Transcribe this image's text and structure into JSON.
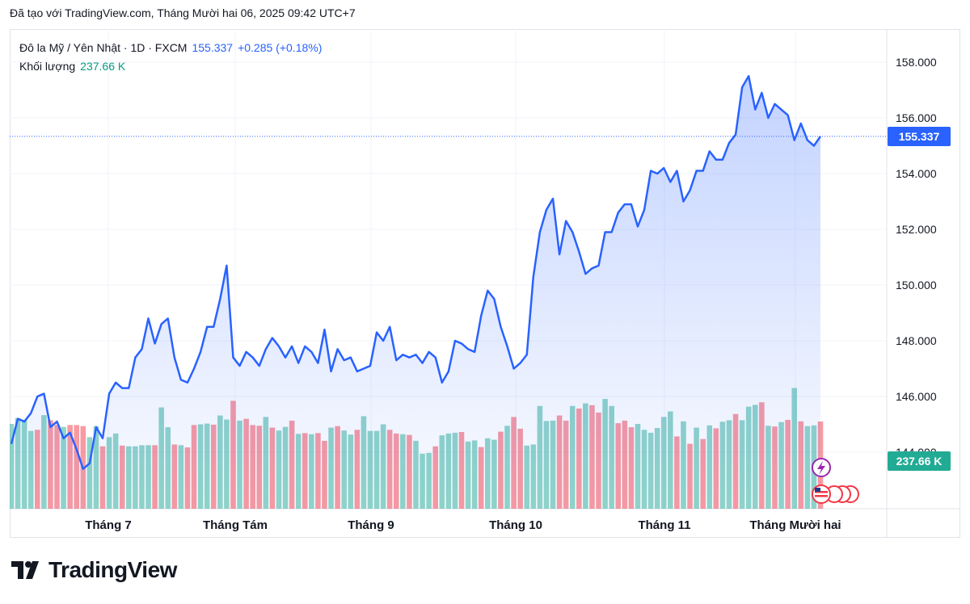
{
  "header": {
    "created_text": "Đã tạo với TradingView.com, Tháng Mười hai 06, 2025 09:42 UTC+7"
  },
  "legend": {
    "symbol": "Đô la Mỹ / Yên Nhật · 1D · FXCM",
    "price": "155.337",
    "change": "+0.285 (+0.18%)",
    "volume_label": "Khối lượng",
    "volume_value": "237.66 K"
  },
  "tags": {
    "price_tag": "155.337",
    "volume_tag": "237.66 K"
  },
  "footer": {
    "brand": "TradingView"
  },
  "colors": {
    "line": "#2962ff",
    "vol_up": "#22ab94",
    "vol_down": "#f23645"
  },
  "icons": [
    "flash-event-icon",
    "us-flag-event-icon"
  ],
  "chart_data": {
    "type": "area",
    "title": "Đô la Mỹ / Yên Nhật · 1D · FXCM",
    "x_tick_labels": [
      "Tháng 7",
      "Tháng Tám",
      "Tháng 9",
      "Tháng 10",
      "Tháng 11",
      "Tháng Mười hai"
    ],
    "y_tick_labels": [
      "158.000",
      "156.000",
      "154.000",
      "152.000",
      "150.000",
      "148.000",
      "146.000",
      "144.000"
    ],
    "ylim": [
      143.0,
      159.0
    ],
    "last_price": 155.337,
    "grid": true,
    "series": [
      {
        "values": [
          144.3,
          145.2,
          145.1,
          145.4,
          146.0,
          146.1,
          144.9,
          145.1,
          144.5,
          144.7,
          144.1,
          143.4,
          143.6,
          144.9,
          144.5,
          146.1,
          146.5,
          146.3,
          146.3,
          147.4,
          147.7,
          148.8,
          147.9,
          148.6,
          148.8,
          147.4,
          146.6,
          146.5,
          147.0,
          147.6,
          148.5,
          148.5,
          149.5,
          150.7,
          147.4,
          147.1,
          147.6,
          147.4,
          147.1,
          147.7,
          148.1,
          147.8,
          147.4,
          147.8,
          147.2,
          147.8,
          147.6,
          147.2,
          148.4,
          146.9,
          147.7,
          147.3,
          147.4,
          146.9,
          147.0,
          147.1,
          148.3,
          148.0,
          148.5,
          147.3,
          147.5,
          147.4,
          147.5,
          147.2,
          147.6,
          147.4,
          146.5,
          146.9,
          148.0,
          147.9,
          147.7,
          147.6,
          148.9,
          149.8,
          149.5,
          148.5,
          147.8,
          147.0,
          147.2,
          147.5,
          150.3,
          151.9,
          152.7,
          153.1,
          151.1,
          152.3,
          151.9,
          151.2,
          150.4,
          150.6,
          150.7,
          151.9,
          151.9,
          152.6,
          152.9,
          152.9,
          152.1,
          152.7,
          154.1,
          154.0,
          154.2,
          153.7,
          154.1,
          153.0,
          153.4,
          154.1,
          154.1,
          154.8,
          154.5,
          154.5,
          155.1,
          155.4,
          157.1,
          157.5,
          156.3,
          156.9,
          156.0,
          156.5,
          156.3,
          156.1,
          155.2,
          155.8,
          155.2,
          155.0,
          155.337
        ]
      }
    ],
    "volume": {
      "values_k": [
        231,
        247,
        242,
        212,
        215,
        255,
        241,
        228,
        223,
        228,
        228,
        225,
        195,
        225,
        170,
        195,
        205,
        172,
        170,
        170,
        173,
        173,
        173,
        276,
        222,
        175,
        173,
        167,
        228,
        230,
        232,
        229,
        254,
        243,
        294,
        240,
        245,
        228,
        226,
        250,
        221,
        213,
        223,
        240,
        204,
        206,
        203,
        206,
        185,
        221,
        225,
        213,
        202,
        215,
        252,
        212,
        212,
        230,
        215,
        205,
        203,
        201,
        185,
        150,
        152,
        170,
        200,
        205,
        207,
        209,
        183,
        186,
        168,
        192,
        188,
        210,
        226,
        250,
        218,
        172,
        175,
        280,
        239,
        240,
        254,
        240,
        280,
        273,
        287,
        282,
        262,
        299,
        280,
        233,
        240,
        222,
        231,
        215,
        207,
        220,
        250,
        265,
        197,
        238,
        177,
        221,
        190,
        227,
        219,
        237,
        241,
        258,
        241,
        278,
        283,
        290,
        226,
        224,
        236,
        242,
        329,
        238,
        225,
        227,
        237.66
      ],
      "up_down": [
        "u",
        "u",
        "u",
        "u",
        "d",
        "u",
        "d",
        "d",
        "u",
        "d",
        "d",
        "d",
        "u",
        "u",
        "d",
        "u",
        "u",
        "d",
        "u",
        "u",
        "u",
        "u",
        "d",
        "u",
        "u",
        "d",
        "u",
        "d",
        "d",
        "u",
        "u",
        "d",
        "u",
        "u",
        "d",
        "u",
        "d",
        "d",
        "d",
        "u",
        "d",
        "u",
        "u",
        "d",
        "u",
        "d",
        "u",
        "d",
        "d",
        "u",
        "d",
        "u",
        "u",
        "d",
        "u",
        "u",
        "u",
        "u",
        "d",
        "d",
        "u",
        "d",
        "u",
        "u",
        "u",
        "d",
        "u",
        "u",
        "u",
        "d",
        "u",
        "u",
        "d",
        "u",
        "u",
        "d",
        "u",
        "d",
        "d",
        "u",
        "u",
        "u",
        "u",
        "u",
        "d",
        "d",
        "u",
        "d",
        "u",
        "d",
        "d",
        "u",
        "u",
        "d",
        "d",
        "d",
        "u",
        "u",
        "u",
        "u",
        "u",
        "u",
        "d",
        "u",
        "d",
        "u",
        "d",
        "u",
        "d",
        "u",
        "u",
        "d",
        "u",
        "u",
        "u",
        "d",
        "u",
        "d",
        "u",
        "d",
        "u",
        "d",
        "u",
        "u",
        "d"
      ]
    }
  }
}
